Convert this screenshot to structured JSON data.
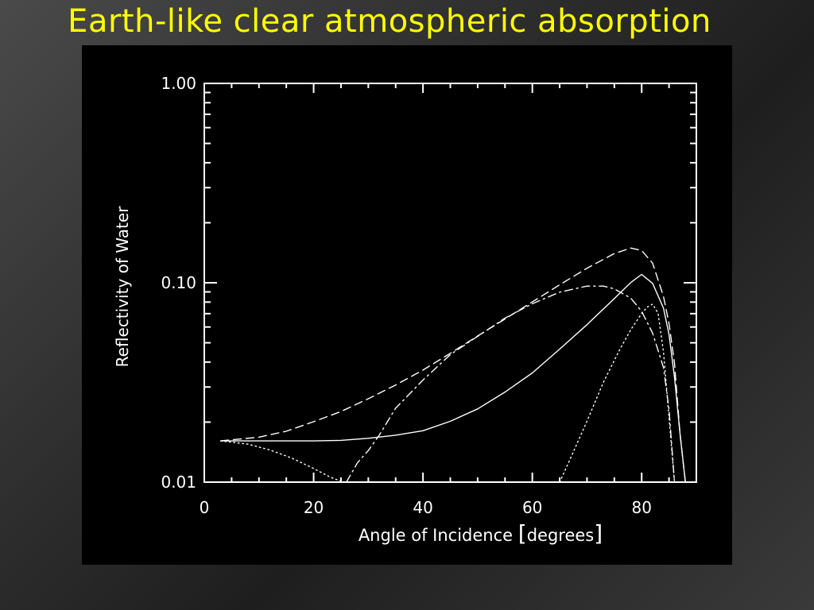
{
  "slide": {
    "title": "Earth-like clear atmospheric absorption"
  },
  "chart_data": {
    "type": "line",
    "xlabel_main": "Angle of Incidence ",
    "xlabel_unit": "degrees",
    "ylabel": "Reflectivity of Water",
    "xlim": [
      0,
      90
    ],
    "ylim": [
      0.01,
      1.0
    ],
    "yscale": "log",
    "grid": false,
    "legend": "none",
    "x_ticks": [
      0,
      20,
      40,
      60,
      80
    ],
    "x_tick_labels": [
      "0",
      "20",
      "40",
      "60",
      "80"
    ],
    "y_ticks": [
      0.01,
      0.1,
      1.0
    ],
    "y_tick_labels": [
      "0.01",
      "0.10",
      "1.00"
    ],
    "series": [
      {
        "style": "solid",
        "x": [
          3,
          10,
          20,
          25,
          30,
          35,
          40,
          45,
          50,
          55,
          60,
          65,
          70,
          75,
          78,
          80,
          82,
          84,
          85,
          86,
          87,
          88
        ],
        "y": [
          0.0161,
          0.0161,
          0.0161,
          0.0162,
          0.0166,
          0.0172,
          0.0181,
          0.0202,
          0.0233,
          0.0283,
          0.0353,
          0.0465,
          0.0616,
          0.0833,
          0.1003,
          0.1101,
          0.0993,
          0.0745,
          0.0551,
          0.0336,
          0.0176,
          0.01
        ]
      },
      {
        "style": "dashed",
        "x": [
          3,
          10,
          15,
          20,
          25,
          30,
          35,
          40,
          45,
          50,
          55,
          60,
          65,
          70,
          75,
          78,
          80,
          82,
          84,
          85,
          86,
          87,
          88
        ],
        "y": [
          0.0161,
          0.0168,
          0.018,
          0.0201,
          0.0226,
          0.0262,
          0.0307,
          0.0365,
          0.0443,
          0.0541,
          0.0658,
          0.0802,
          0.0977,
          0.1183,
          0.1402,
          0.1493,
          0.1453,
          0.1253,
          0.0852,
          0.0625,
          0.0395,
          0.0176,
          0.01
        ]
      },
      {
        "style": "dotted",
        "x": [
          3,
          8,
          12,
          16,
          20,
          23,
          25,
          26,
          65,
          67,
          70,
          73,
          76,
          78,
          80,
          81,
          82,
          83,
          84,
          85,
          86
        ],
        "y": [
          0.0161,
          0.0155,
          0.0145,
          0.0132,
          0.0117,
          0.0106,
          0.0101,
          0.01,
          0.01,
          0.0132,
          0.0202,
          0.0317,
          0.0463,
          0.0581,
          0.0702,
          0.0755,
          0.0781,
          0.0702,
          0.0448,
          0.0211,
          0.01
        ]
      },
      {
        "style": "dashdot",
        "x": [
          26,
          28,
          30,
          32,
          35,
          40,
          45,
          50,
          55,
          60,
          65,
          70,
          73,
          75,
          78,
          80,
          82,
          84,
          85,
          86
        ],
        "y": [
          0.01,
          0.0125,
          0.0144,
          0.0172,
          0.0235,
          0.0325,
          0.0436,
          0.0539,
          0.0665,
          0.0785,
          0.0897,
          0.0962,
          0.0962,
          0.0932,
          0.0838,
          0.0719,
          0.0559,
          0.0375,
          0.0232,
          0.01
        ]
      }
    ]
  }
}
